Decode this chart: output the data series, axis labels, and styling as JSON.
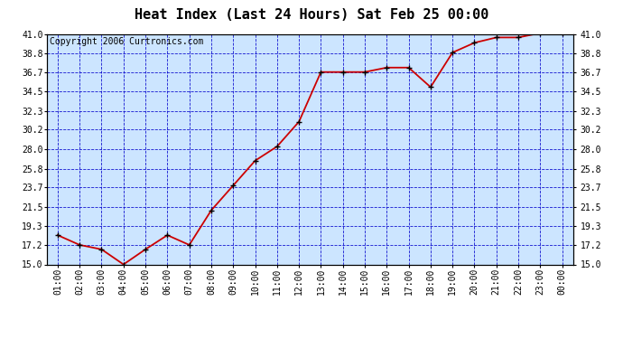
{
  "title": "Heat Index (Last 24 Hours) Sat Feb 25 00:00",
  "copyright": "Copyright 2006 Curtronics.com",
  "x_labels": [
    "01:00",
    "02:00",
    "03:00",
    "04:00",
    "05:00",
    "06:00",
    "07:00",
    "08:00",
    "09:00",
    "10:00",
    "11:00",
    "12:00",
    "13:00",
    "14:00",
    "15:00",
    "16:00",
    "17:00",
    "18:00",
    "19:00",
    "20:00",
    "21:00",
    "22:00",
    "23:00",
    "00:00"
  ],
  "y_values": [
    18.3,
    17.2,
    16.7,
    15.0,
    16.7,
    18.3,
    17.2,
    21.1,
    23.9,
    26.7,
    28.3,
    31.1,
    36.7,
    36.7,
    36.7,
    37.2,
    37.2,
    35.0,
    38.9,
    40.0,
    40.6,
    40.6,
    41.1,
    41.1
  ],
  "line_color": "#cc0000",
  "marker_color": "#000000",
  "bg_color": "#cce5ff",
  "grid_color": "#0000cc",
  "outer_bg": "#ffffff",
  "ylim_min": 15.0,
  "ylim_max": 41.0,
  "ytick_values": [
    15.0,
    17.2,
    19.3,
    21.5,
    23.7,
    25.8,
    28.0,
    30.2,
    32.3,
    34.5,
    36.7,
    38.8,
    41.0
  ],
  "title_fontsize": 11,
  "copyright_fontsize": 7,
  "tick_fontsize": 7
}
